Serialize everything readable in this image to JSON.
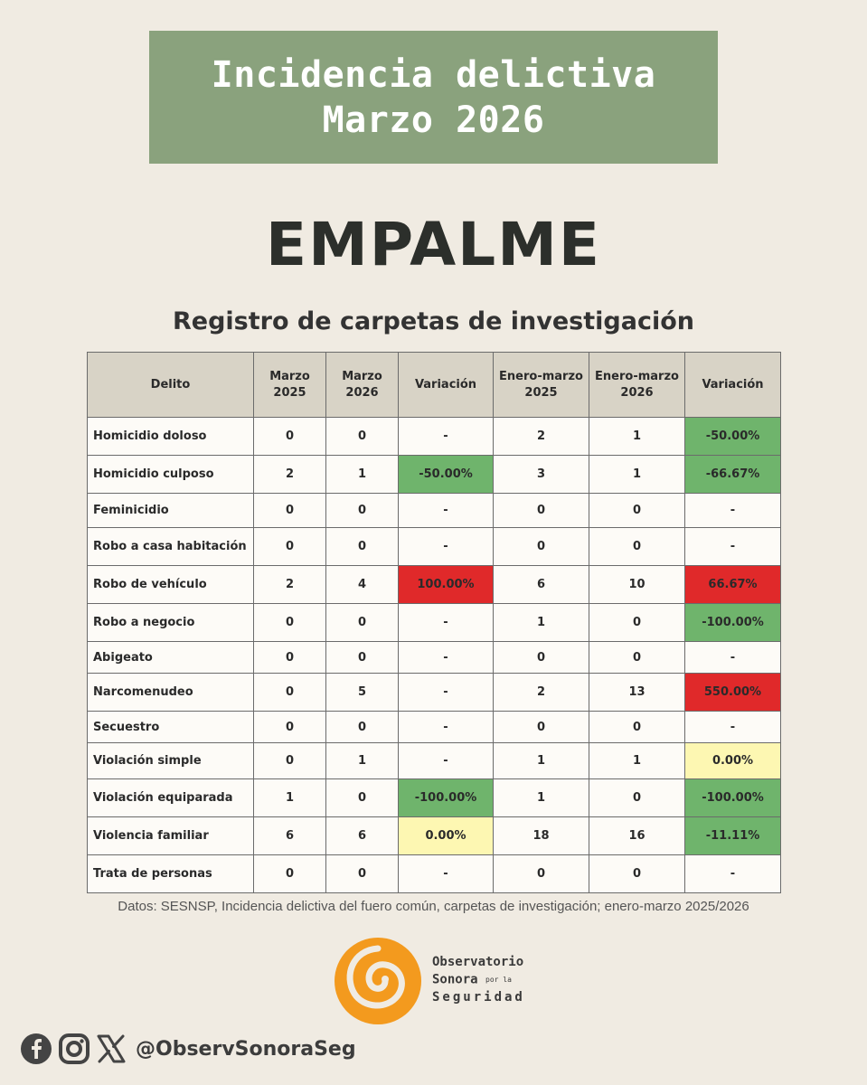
{
  "header": {
    "title_line1": "Incidencia delictiva",
    "title_line2": "Marzo 2026",
    "municipality": "EMPALME",
    "subtitle": "Registro de carpetas de investigación"
  },
  "table": {
    "headers": {
      "delito": "Delito",
      "mar2025_a": "Marzo",
      "mar2025_b": "2025",
      "mar2026_a": "Marzo",
      "mar2026_b": "2026",
      "variacion1": "Variación",
      "ene2025_a": "Enero-marzo",
      "ene2025_b": "2025",
      "ene2026_a": "Enero-marzo",
      "ene2026_b": "2026",
      "variacion2": "Variación"
    },
    "rows": [
      {
        "delito": "Homicidio doloso",
        "m25": "0",
        "m26": "0",
        "var1": "-",
        "var1_status": "none",
        "e25": "2",
        "e26": "1",
        "var2": "-50.00%",
        "var2_status": "green"
      },
      {
        "delito": "Homicidio culposo",
        "m25": "2",
        "m26": "1",
        "var1": "-50.00%",
        "var1_status": "green",
        "e25": "3",
        "e26": "1",
        "var2": "-66.67%",
        "var2_status": "green"
      },
      {
        "delito": "Feminicidio",
        "m25": "0",
        "m26": "0",
        "var1": "-",
        "var1_status": "none",
        "e25": "0",
        "e26": "0",
        "var2": "-",
        "var2_status": "none"
      },
      {
        "delito": "Robo a casa habitación",
        "m25": "0",
        "m26": "0",
        "var1": "-",
        "var1_status": "none",
        "e25": "0",
        "e26": "0",
        "var2": "-",
        "var2_status": "none"
      },
      {
        "delito": "Robo de vehículo",
        "m25": "2",
        "m26": "4",
        "var1": "100.00%",
        "var1_status": "red",
        "e25": "6",
        "e26": "10",
        "var2": "66.67%",
        "var2_status": "red"
      },
      {
        "delito": "Robo a negocio",
        "m25": "0",
        "m26": "0",
        "var1": "-",
        "var1_status": "none",
        "e25": "1",
        "e26": "0",
        "var2": "-100.00%",
        "var2_status": "green"
      },
      {
        "delito": "Abigeato",
        "m25": "0",
        "m26": "0",
        "var1": "-",
        "var1_status": "none",
        "e25": "0",
        "e26": "0",
        "var2": "-",
        "var2_status": "none"
      },
      {
        "delito": "Narcomenudeo",
        "m25": "0",
        "m26": "5",
        "var1": "-",
        "var1_status": "none",
        "e25": "2",
        "e26": "13",
        "var2": "550.00%",
        "var2_status": "red"
      },
      {
        "delito": "Secuestro",
        "m25": "0",
        "m26": "0",
        "var1": "-",
        "var1_status": "none",
        "e25": "0",
        "e26": "0",
        "var2": "-",
        "var2_status": "none"
      },
      {
        "delito": "Violación simple",
        "m25": "0",
        "m26": "1",
        "var1": "-",
        "var1_status": "none",
        "e25": "1",
        "e26": "1",
        "var2": "0.00%",
        "var2_status": "yellow"
      },
      {
        "delito": "Violación equiparada",
        "m25": "1",
        "m26": "0",
        "var1": "-100.00%",
        "var1_status": "green",
        "e25": "1",
        "e26": "0",
        "var2": "-100.00%",
        "var2_status": "green"
      },
      {
        "delito": "Violencia familiar",
        "m25": "6",
        "m26": "6",
        "var1": "0.00%",
        "var1_status": "yellow",
        "e25": "18",
        "e26": "16",
        "var2": "-11.11%",
        "var2_status": "green"
      },
      {
        "delito": "Trata de personas",
        "m25": "0",
        "m26": "0",
        "var1": "-",
        "var1_status": "none",
        "e25": "0",
        "e26": "0",
        "var2": "-",
        "var2_status": "none"
      }
    ]
  },
  "source": "Datos: SESNSP, Incidencia delictiva del fuero común, carpetas de investigación; enero-marzo 2025/2026",
  "logo": {
    "line1": "Observatorio",
    "line2": "Sonora",
    "line2_small": "por la",
    "line3": "Seguridad"
  },
  "social": {
    "icons": [
      "facebook-icon",
      "instagram-icon",
      "x-icon"
    ],
    "handle": "@ObservSonoraSeg"
  },
  "colors": {
    "background": "#f0ebe2",
    "title_box": "#8aa27d",
    "decrease": "#6fb46c",
    "increase": "#e0292a",
    "no_change": "#fdf7b2",
    "logo_orange": "#f39a1e"
  }
}
